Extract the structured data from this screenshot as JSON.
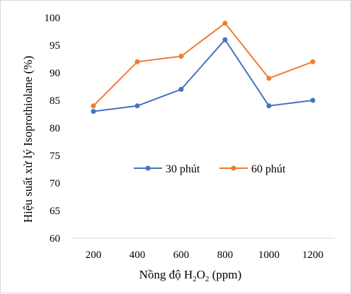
{
  "chart_data": {
    "type": "line",
    "x": [
      "200",
      "400",
      "600",
      "800",
      "1000",
      "1200"
    ],
    "ylim": [
      60,
      100
    ],
    "yticks": [
      "60",
      "65",
      "70",
      "75",
      "80",
      "85",
      "90",
      "95",
      "100"
    ],
    "xlabel": {
      "prefix": "Nồng độ H",
      "sub1": "2",
      "mid": "O",
      "sub2": "2",
      "suffix": " (ppm)"
    },
    "ylabel": "Hiệu suất xử lý Isoprothiolane (%)",
    "grid": false,
    "legend_position": "center-right",
    "series": [
      {
        "name": "30 phút",
        "color": "#4472C4",
        "values": [
          83,
          84,
          87,
          96,
          84,
          85
        ]
      },
      {
        "name": "60 phút",
        "color": "#ED7D31",
        "values": [
          84,
          92,
          93,
          99,
          89,
          92
        ]
      }
    ]
  }
}
